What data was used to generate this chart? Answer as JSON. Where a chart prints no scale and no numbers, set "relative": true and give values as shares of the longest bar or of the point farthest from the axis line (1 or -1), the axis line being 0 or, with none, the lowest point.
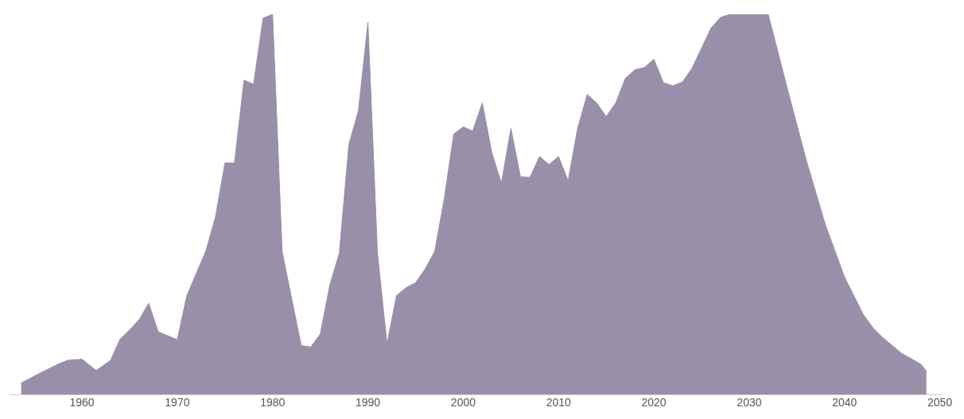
{
  "chart_data": {
    "type": "area",
    "relative": true,
    "grid": false,
    "legend": false,
    "x": [
      1953.6,
      1955.5,
      1957.5,
      1958.5,
      1960,
      1961.5,
      1963,
      1964,
      1965,
      1966,
      1967,
      1968,
      1970,
      1971,
      1973,
      1974,
      1975,
      1976,
      1977,
      1978,
      1979,
      1980,
      1981,
      1983,
      1984,
      1985,
      1986,
      1987,
      1988,
      1989,
      1990,
      1991,
      1992,
      1993,
      1994,
      1995,
      1996,
      1997,
      1998,
      1999,
      2000,
      2001,
      2002,
      2003,
      2004,
      2005,
      2006,
      2007,
      2008,
      2009,
      2010,
      2011,
      2012,
      2013,
      2014,
      2015,
      2016,
      2017,
      2018,
      2019,
      2020,
      2021,
      2022,
      2023,
      2024,
      2025,
      2026,
      2027,
      2028,
      2029,
      2030,
      2031,
      2032,
      2034,
      2036,
      2038,
      2040,
      2042,
      2043,
      2044,
      2046,
      2048,
      2048.6
    ],
    "series": [
      {
        "color": "#9a8fa8",
        "values": [
          0.03,
          0.055,
          0.08,
          0.09,
          0.093,
          0.063,
          0.09,
          0.146,
          0.17,
          0.197,
          0.24,
          0.165,
          0.144,
          0.26,
          0.378,
          0.467,
          0.609,
          0.609,
          0.827,
          0.816,
          0.99,
          1.0,
          0.376,
          0.129,
          0.125,
          0.159,
          0.288,
          0.372,
          0.658,
          0.746,
          0.979,
          0.372,
          0.133,
          0.26,
          0.281,
          0.294,
          0.33,
          0.376,
          0.514,
          0.685,
          0.704,
          0.693,
          0.767,
          0.636,
          0.556,
          0.7,
          0.573,
          0.571,
          0.626,
          0.605,
          0.626,
          0.562,
          0.7,
          0.789,
          0.767,
          0.731,
          0.767,
          0.831,
          0.854,
          0.86,
          0.882,
          0.82,
          0.812,
          0.822,
          0.858,
          0.911,
          0.964,
          0.992,
          1.0,
          1.0,
          1.0,
          1.0,
          1.0,
          0.805,
          0.615,
          0.446,
          0.309,
          0.209,
          0.175,
          0.15,
          0.108,
          0.08,
          0.061
        ]
      }
    ],
    "xlim": [
      1952.4,
      2050.2
    ],
    "xticks": [
      1960,
      1970,
      1980,
      1990,
      2000,
      2010,
      2020,
      2030,
      2040,
      2050
    ]
  }
}
